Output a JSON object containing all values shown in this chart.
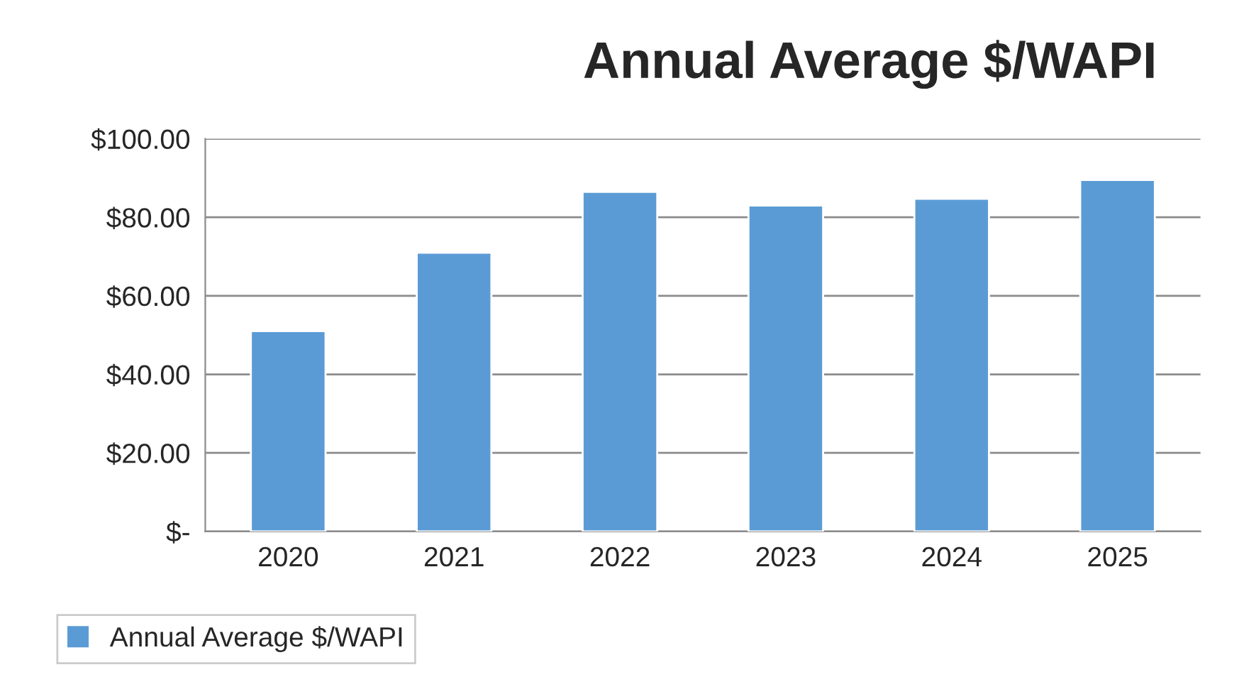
{
  "chart_data": {
    "type": "bar",
    "title": "Annual Average $/WAPI",
    "categories": [
      "2020",
      "2021",
      "2022",
      "2023",
      "2024",
      "2025"
    ],
    "series": [
      {
        "name": "Annual Average $/WAPI",
        "color": "#5b9bd5",
        "values": [
          51,
          71,
          86.5,
          83,
          84.7,
          89.5
        ]
      }
    ],
    "ylim": [
      0,
      100
    ],
    "yticks": [
      {
        "value": 0,
        "label": "$-"
      },
      {
        "value": 20,
        "label": "$20.00"
      },
      {
        "value": 40,
        "label": "$40.00"
      },
      {
        "value": 60,
        "label": "$60.00"
      },
      {
        "value": 80,
        "label": "$80.00"
      },
      {
        "value": 100,
        "label": "$100.00"
      }
    ],
    "grid": "y",
    "legend": "bottom left"
  }
}
